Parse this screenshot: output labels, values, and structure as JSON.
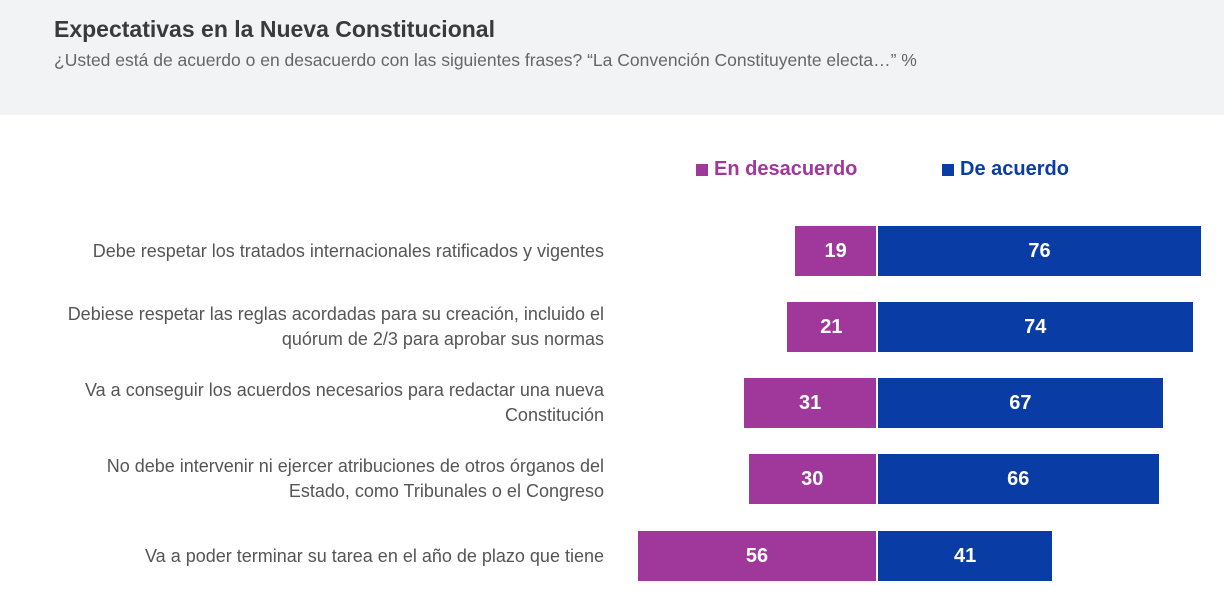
{
  "header": {
    "title": "Expectativas en la Nueva Constitucional",
    "subtitle": "¿Usted está de acuerdo o en desacuerdo con las siguientes frases? “La Convención Constituyente electa…” %"
  },
  "legend": {
    "disagree_label": "En desacuerdo",
    "agree_label": "De acuerdo"
  },
  "colors": {
    "disagree": "#a0379b",
    "agree": "#0a3ca5"
  },
  "chart_data": {
    "type": "bar",
    "orientation": "horizontal-diverging",
    "categories": [
      "Debe respetar los tratados internacionales ratificados y vigentes",
      "Debiese respetar las reglas acordadas para su creación, incluido el\nquórum de 2/3 para aprobar sus normas",
      "Va a conseguir los acuerdos necesarios para redactar una nueva\nConstitución",
      "No debe intervenir ni ejercer atribuciones de otros órganos del\nEstado, como Tribunales o el Congreso",
      "Va a poder terminar su tarea en el año de plazo que tiene"
    ],
    "series": [
      {
        "name": "En desacuerdo",
        "values": [
          19,
          21,
          31,
          30,
          56
        ]
      },
      {
        "name": "De acuerdo",
        "values": [
          76,
          74,
          67,
          66,
          41
        ]
      }
    ],
    "legend_position": "top-right",
    "grid": false
  }
}
